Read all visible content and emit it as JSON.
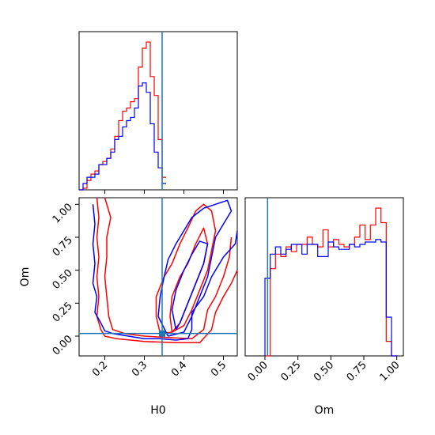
{
  "chart_data": {
    "type": "corner",
    "colors": {
      "red": "#ff0000",
      "blue": "#0000ff",
      "truth": "#1f77b4"
    },
    "truth": {
      "H0": 0.345,
      "Om": 0.02
    },
    "panels": [
      {
        "id": "hist-H0",
        "type": "histogram-step",
        "xlim": [
          0.135,
          0.535
        ],
        "series": [
          {
            "color": "red",
            "bin_start": 0.135,
            "bin_width": 0.01,
            "counts": [
              0,
              0.5,
              3,
              5,
              6,
              8,
              9,
              10,
              13,
              17,
              22,
              25,
              26,
              28,
              29,
              39,
              45,
              47,
              36,
              30,
              16,
              4
            ]
          },
          {
            "color": "blue",
            "bin_start": 0.135,
            "bin_width": 0.01,
            "counts": [
              0,
              2,
              4,
              4,
              5,
              8,
              8,
              10,
              12,
              16,
              17,
              20,
              22,
              23,
              26,
              33,
              34,
              31,
              21,
              12,
              7,
              2
            ]
          }
        ]
      },
      {
        "id": "contour-H0-Om",
        "type": "contour",
        "xlim": [
          0.135,
          0.535
        ],
        "ylim": [
          -0.15,
          1.05
        ],
        "xlabel": "H0",
        "ylabel": "Om",
        "xticks": [
          0.2,
          0.3,
          0.4,
          0.5
        ],
        "xtick_labels": [
          "0.2",
          "0.3",
          "0.4",
          "0.5"
        ],
        "yticks": [
          0.0,
          0.25,
          0.5,
          0.75,
          1.0
        ],
        "ytick_labels": [
          "0.00",
          "0.25",
          "0.50",
          "0.75",
          "1.00"
        ],
        "contours": [
          {
            "color": "red",
            "points": [
              [
                0.18,
                1.05
              ],
              [
                0.185,
                0.9
              ],
              [
                0.18,
                0.75
              ],
              [
                0.185,
                0.6
              ],
              [
                0.18,
                0.45
              ],
              [
                0.185,
                0.3
              ],
              [
                0.18,
                0.15
              ],
              [
                0.19,
                0.05
              ],
              [
                0.2,
                0.0
              ],
              [
                0.23,
                -0.02
              ],
              [
                0.3,
                -0.04
              ],
              [
                0.38,
                -0.05
              ],
              [
                0.44,
                -0.05
              ],
              [
                0.47,
                0.05
              ],
              [
                0.48,
                0.18
              ],
              [
                0.5,
                0.3
              ],
              [
                0.52,
                0.4
              ],
              [
                0.535,
                0.5
              ]
            ]
          },
          {
            "color": "red",
            "points": [
              [
                0.2,
                1.05
              ],
              [
                0.215,
                0.9
              ],
              [
                0.205,
                0.75
              ],
              [
                0.205,
                0.6
              ],
              [
                0.2,
                0.45
              ],
              [
                0.205,
                0.3
              ],
              [
                0.21,
                0.15
              ],
              [
                0.22,
                0.05
              ],
              [
                0.25,
                0.02
              ],
              [
                0.3,
                0.0
              ],
              [
                0.36,
                -0.01
              ],
              [
                0.42,
                -0.02
              ],
              [
                0.45,
                0.05
              ],
              [
                0.46,
                0.2
              ],
              [
                0.48,
                0.3
              ],
              [
                0.5,
                0.45
              ],
              [
                0.515,
                0.6
              ],
              [
                0.52,
                0.75
              ]
            ]
          },
          {
            "color": "red",
            "points": [
              [
                0.34,
                0.02
              ],
              [
                0.33,
                0.15
              ],
              [
                0.33,
                0.3
              ],
              [
                0.35,
                0.45
              ],
              [
                0.37,
                0.55
              ],
              [
                0.39,
                0.7
              ],
              [
                0.41,
                0.82
              ],
              [
                0.43,
                0.95
              ],
              [
                0.45,
                1.0
              ],
              [
                0.47,
                0.95
              ],
              [
                0.48,
                0.8
              ],
              [
                0.47,
                0.65
              ],
              [
                0.46,
                0.5
              ],
              [
                0.44,
                0.35
              ],
              [
                0.42,
                0.2
              ],
              [
                0.4,
                0.08
              ],
              [
                0.37,
                0.03
              ],
              [
                0.34,
                0.02
              ]
            ]
          },
          {
            "color": "red",
            "points": [
              [
                0.37,
                0.03
              ],
              [
                0.365,
                0.15
              ],
              [
                0.37,
                0.3
              ],
              [
                0.39,
                0.45
              ],
              [
                0.41,
                0.55
              ],
              [
                0.43,
                0.7
              ],
              [
                0.45,
                0.82
              ],
              [
                0.46,
                0.7
              ],
              [
                0.45,
                0.55
              ],
              [
                0.43,
                0.4
              ],
              [
                0.41,
                0.25
              ],
              [
                0.39,
                0.1
              ],
              [
                0.37,
                0.03
              ]
            ]
          },
          {
            "color": "blue",
            "points": [
              [
                0.17,
                1.0
              ],
              [
                0.175,
                0.85
              ],
              [
                0.17,
                0.7
              ],
              [
                0.175,
                0.55
              ],
              [
                0.17,
                0.4
              ],
              [
                0.18,
                0.3
              ],
              [
                0.175,
                0.18
              ],
              [
                0.19,
                0.1
              ],
              [
                0.2,
                0.04
              ],
              [
                0.22,
                0.02
              ],
              [
                0.26,
                0.0
              ],
              [
                0.3,
                -0.02
              ],
              [
                0.34,
                -0.02
              ],
              [
                0.38,
                -0.03
              ],
              [
                0.41,
                -0.02
              ],
              [
                0.42,
                0.05
              ],
              [
                0.42,
                0.18
              ],
              [
                0.45,
                0.3
              ],
              [
                0.47,
                0.45
              ],
              [
                0.5,
                0.6
              ],
              [
                0.53,
                0.7
              ],
              [
                0.535,
                0.8
              ]
            ]
          },
          {
            "color": "blue",
            "points": [
              [
                0.36,
                0.0
              ],
              [
                0.335,
                0.15
              ],
              [
                0.34,
                0.3
              ],
              [
                0.35,
                0.45
              ],
              [
                0.36,
                0.58
              ],
              [
                0.38,
                0.7
              ],
              [
                0.4,
                0.8
              ],
              [
                0.42,
                0.9
              ],
              [
                0.45,
                0.97
              ],
              [
                0.48,
                1.0
              ],
              [
                0.51,
                1.03
              ],
              [
                0.52,
                0.95
              ],
              [
                0.5,
                0.85
              ],
              [
                0.48,
                0.75
              ],
              [
                0.47,
                0.6
              ],
              [
                0.46,
                0.45
              ],
              [
                0.44,
                0.3
              ],
              [
                0.42,
                0.15
              ],
              [
                0.4,
                0.03
              ],
              [
                0.36,
                0.0
              ]
            ]
          },
          {
            "color": "blue",
            "points": [
              [
                0.38,
                0.05
              ],
              [
                0.37,
                0.2
              ],
              [
                0.38,
                0.35
              ],
              [
                0.4,
                0.5
              ],
              [
                0.42,
                0.62
              ],
              [
                0.44,
                0.72
              ],
              [
                0.46,
                0.7
              ],
              [
                0.45,
                0.55
              ],
              [
                0.43,
                0.4
              ],
              [
                0.41,
                0.25
              ],
              [
                0.39,
                0.1
              ],
              [
                0.38,
                0.05
              ]
            ]
          }
        ]
      },
      {
        "id": "hist-Om",
        "type": "histogram-step",
        "xlim": [
          -0.15,
          1.05
        ],
        "xlabel": "Om",
        "xticks": [
          0.0,
          0.25,
          0.5,
          0.75,
          1.0
        ],
        "xtick_labels": [
          "0.00",
          "0.25",
          "0.50",
          "0.75",
          "1.00"
        ],
        "series": [
          {
            "color": "red",
            "bin_start": 0.0,
            "bin_width": 0.04,
            "counts": [
              0,
              36,
              42,
              41,
              45,
              43,
              46,
              46,
              49,
              46,
              45,
              52,
              45,
              48,
              46,
              45,
              46,
              49,
              54,
              48,
              54,
              61,
              55,
              6,
              0
            ]
          },
          {
            "color": "blue",
            "bin_start": 0.0,
            "bin_width": 0.04,
            "counts": [
              32,
              42,
              45,
              42,
              44,
              46,
              46,
              42,
              46,
              46,
              41,
              41,
              47,
              45,
              44,
              44,
              46,
              45,
              46,
              47,
              47,
              48,
              47,
              16,
              0
            ]
          }
        ]
      }
    ]
  }
}
